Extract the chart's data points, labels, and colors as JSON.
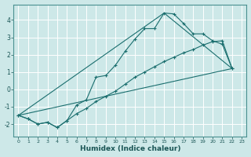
{
  "xlabel": "Humidex (Indice chaleur)",
  "bg_color": "#cde8e8",
  "grid_color": "#ffffff",
  "line_color": "#1a6e6e",
  "xlim": [
    -0.5,
    23.5
  ],
  "ylim": [
    -2.7,
    4.9
  ],
  "yticks": [
    -2,
    -1,
    0,
    1,
    2,
    3,
    4
  ],
  "xticks": [
    0,
    1,
    2,
    3,
    4,
    5,
    6,
    7,
    8,
    9,
    10,
    11,
    12,
    13,
    14,
    15,
    16,
    17,
    18,
    19,
    20,
    21,
    22,
    23
  ],
  "curve1_x": [
    0,
    1,
    2,
    3,
    4,
    5,
    6,
    7,
    8,
    9,
    10,
    11,
    12,
    13,
    14,
    15,
    16,
    17,
    18,
    19,
    20,
    21,
    22
  ],
  "curve1_y": [
    -1.5,
    -1.7,
    -2.0,
    -1.9,
    -2.2,
    -1.8,
    -0.9,
    -0.6,
    0.7,
    0.8,
    1.4,
    2.2,
    2.9,
    3.5,
    3.5,
    4.4,
    4.35,
    3.8,
    3.2,
    3.2,
    2.8,
    2.6,
    1.2
  ],
  "curve2_x": [
    0,
    1,
    2,
    3,
    4,
    5,
    6,
    7,
    8,
    9,
    10,
    11,
    12,
    13,
    14,
    15,
    16,
    17,
    18,
    19,
    20,
    21,
    22
  ],
  "curve2_y": [
    -1.5,
    -1.7,
    -2.0,
    -1.9,
    -2.2,
    -1.8,
    -1.4,
    -1.1,
    -0.7,
    -0.4,
    -0.1,
    0.3,
    0.7,
    1.0,
    1.3,
    1.6,
    1.85,
    2.1,
    2.3,
    2.55,
    2.75,
    2.8,
    1.2
  ],
  "line3_x": [
    0,
    22
  ],
  "line3_y": [
    -1.5,
    1.2
  ],
  "line4_x": [
    0,
    15,
    22
  ],
  "line4_y": [
    -1.5,
    4.4,
    1.2
  ]
}
